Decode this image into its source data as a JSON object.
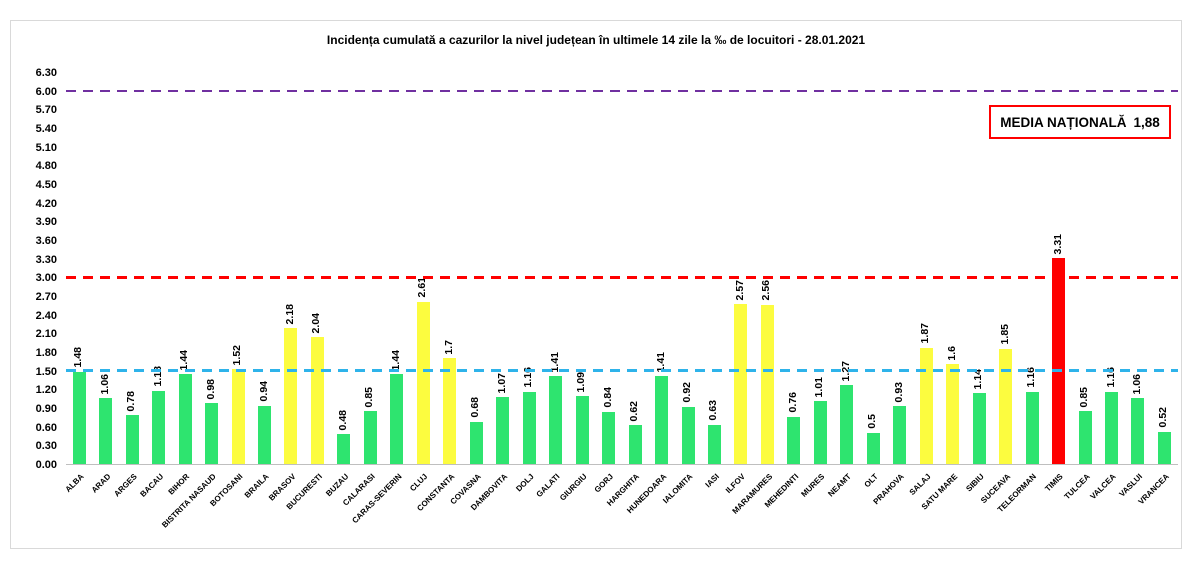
{
  "title": "Incidența cumulată a cazurilor la nivel județean în ultimele 14 zile la ‰ de locuitori - 28.01.2021",
  "national_average": {
    "label": "MEDIA NAȚIONALĂ",
    "value": "1,88"
  },
  "chart_data": {
    "type": "bar",
    "title": "Incidența cumulată a cazurilor la nivel județean în ultimele 14 zile la ‰ de locuitori - 28.01.2021",
    "categories": [
      "ALBA",
      "ARAD",
      "ARGES",
      "BACAU",
      "BIHOR",
      "BISTRITA NASAUD",
      "BOTOSANI",
      "BRAILA",
      "BRASOV",
      "BUCURESTI",
      "BUZAU",
      "CALARASI",
      "CARAS-SEVERIN",
      "CLUJ",
      "CONSTANTA",
      "COVASNA",
      "DAMBOVITA",
      "DOLJ",
      "GALATI",
      "GIURGIU",
      "GORJ",
      "HARGHITA",
      "HUNEDOARA",
      "IALOMITA",
      "IASI",
      "ILFOV",
      "MARAMURES",
      "MEHEDINTI",
      "MURES",
      "NEAMT",
      "OLT",
      "PRAHOVA",
      "SALAJ",
      "SATU MARE",
      "SIBIU",
      "SUCEAVA",
      "TELEORMAN",
      "TIMIS",
      "TULCEA",
      "VALCEA",
      "VASLUI",
      "VRANCEA"
    ],
    "values": [
      1.48,
      1.06,
      0.78,
      1.18,
      1.44,
      0.98,
      1.52,
      0.94,
      2.18,
      2.04,
      0.48,
      0.85,
      1.44,
      2.61,
      1.7,
      0.68,
      1.07,
      1.16,
      1.41,
      1.09,
      0.84,
      0.62,
      1.41,
      0.92,
      0.63,
      2.57,
      2.56,
      0.76,
      1.01,
      1.27,
      0.5,
      0.93,
      1.87,
      1.6,
      1.14,
      1.85,
      1.16,
      3.31,
      0.85,
      1.16,
      1.06,
      0.52
    ],
    "value_labels": [
      "1.48",
      "1.06",
      "0.78",
      "1.18",
      "1.44",
      "0.98",
      "1.52",
      "0.94",
      "2.18",
      "2.04",
      "0.48",
      "0.85",
      "1.44",
      "2.61",
      "1.7",
      "0.68",
      "1.07",
      "1.16",
      "1.41",
      "1.09",
      "0.84",
      "0.62",
      "1.41",
      "0.92",
      "0.63",
      "2.57",
      "2.56",
      "0.76",
      "1.01",
      "1.27",
      "0.5",
      "0.93",
      "1.87",
      "1.6",
      "1.14",
      "1.85",
      "1.16",
      "3.31",
      "0.85",
      "1.16",
      "1.06",
      "0.52"
    ],
    "xlabel": "",
    "ylabel": "",
    "ylim": [
      0,
      6.3
    ],
    "ytick_step": 0.3,
    "ytick_labels": [
      "0.00",
      "0.30",
      "0.60",
      "0.90",
      "1.20",
      "1.50",
      "1.80",
      "2.10",
      "2.40",
      "2.70",
      "3.00",
      "3.30",
      "3.60",
      "3.90",
      "4.20",
      "4.50",
      "4.80",
      "5.10",
      "5.40",
      "5.70",
      "6.00",
      "6.30"
    ],
    "grid": false,
    "legend": "none",
    "reference_lines": [
      {
        "value": 6.0,
        "color": "#7030a0",
        "style": "dashed",
        "thickness": 2
      },
      {
        "value": 3.0,
        "color": "#ff0000",
        "style": "dashed",
        "thickness": 3
      },
      {
        "value": 1.5,
        "color": "#2eb3ea",
        "style": "dashed",
        "thickness": 3
      }
    ],
    "bar_colors": {
      "green": "#2ee46f",
      "yellow": "#fcfc3f",
      "red": "#fe0000"
    },
    "color_rules": {
      "red_min": 3.0,
      "yellow_min": 1.5
    }
  }
}
